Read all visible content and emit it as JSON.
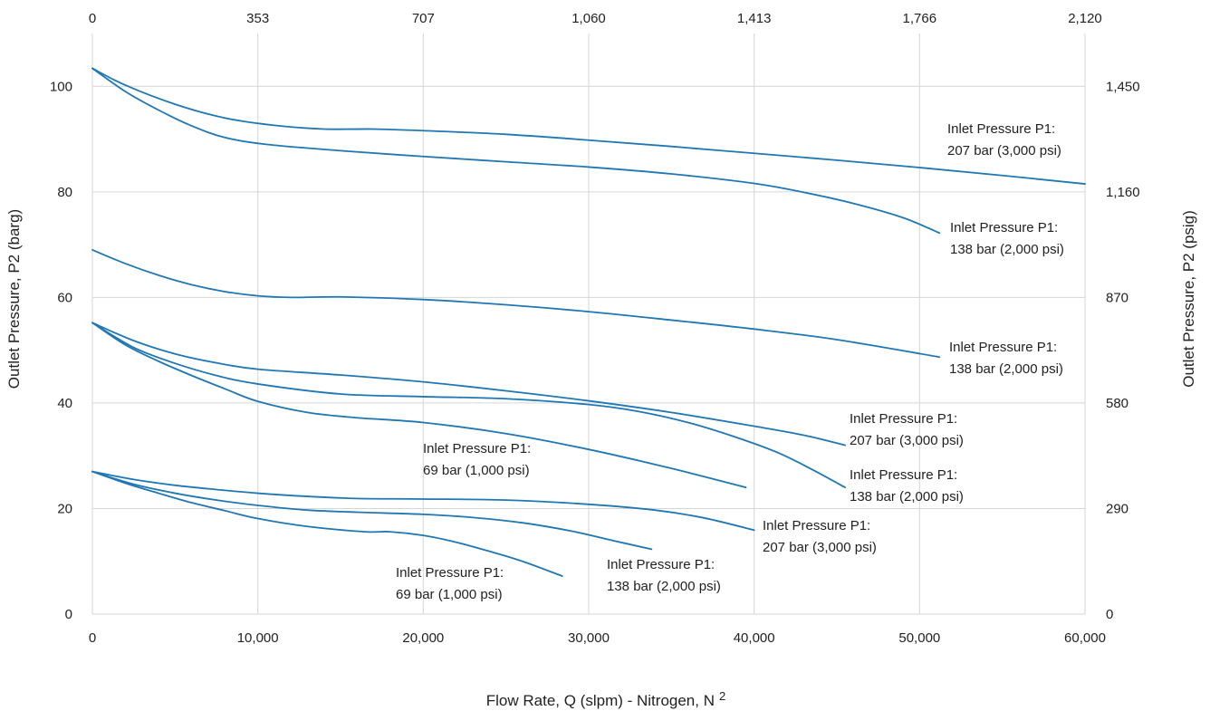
{
  "chart_data": {
    "type": "line",
    "xlabel": "Flow Rate, Q (slpm) - Nitrogen, N",
    "xlabel_subscript": "2",
    "ylabel": "Outlet Pressure, P2 (barg)",
    "ylabel_right": "Outlet Pressure, P2 (psig)",
    "xlim": [
      0,
      60000
    ],
    "ylim": [
      0,
      110
    ],
    "x_ticks": [
      0,
      10000,
      20000,
      30000,
      40000,
      50000,
      60000
    ],
    "x_tick_labels": [
      "0",
      "10,000",
      "20,000",
      "30,000",
      "40,000",
      "50,000",
      "60,000"
    ],
    "top_ticks": [
      0,
      353,
      707,
      1060,
      1413,
      1766,
      2120
    ],
    "top_tick_labels": [
      "0",
      "353",
      "707",
      "1,060",
      "1,413",
      "1,766",
      "2,120"
    ],
    "y_ticks": [
      0,
      20,
      40,
      60,
      80,
      100
    ],
    "y_tick_labels": [
      "0",
      "20",
      "40",
      "60",
      "80",
      "100"
    ],
    "right_tick_labels": [
      "0",
      "290",
      "580",
      "870",
      "1,160",
      "1,450"
    ],
    "grid": true,
    "color": "#1f77b4",
    "series": [
      {
        "annotation_lines": [
          "Inlet Pressure P1:",
          "207 bar (3,000 psi)"
        ],
        "x": [
          0,
          2000,
          5000,
          8000,
          11000,
          14000,
          17000,
          20000,
          25000,
          30000,
          35000,
          40000,
          45000,
          50000,
          55000,
          60000
        ],
        "y": [
          103.4,
          100.2,
          96.6,
          94.0,
          92.6,
          91.9,
          91.9,
          91.6,
          90.9,
          89.8,
          88.6,
          87.3,
          86.0,
          84.6,
          83.1,
          81.5
        ]
      },
      {
        "annotation_lines": [
          "Inlet Pressure P1:",
          "138 bar (2,000 psi)"
        ],
        "x": [
          0,
          2000,
          4000,
          6000,
          8000,
          10500,
          15000,
          20000,
          25000,
          30000,
          35000,
          40000,
          43000,
          46000,
          49000,
          51200
        ],
        "y": [
          103.4,
          99.0,
          95.5,
          92.5,
          90.3,
          89.0,
          87.8,
          86.7,
          85.7,
          84.7,
          83.4,
          81.6,
          79.9,
          77.8,
          75.1,
          72.2
        ]
      },
      {
        "annotation_lines": [
          "Inlet Pressure P1:",
          "138 bar (2,000 psi)"
        ],
        "x": [
          0,
          2000,
          4000,
          6000,
          8000,
          10000,
          12000,
          15000,
          20000,
          25000,
          30000,
          35000,
          40000,
          45000,
          51200
        ],
        "y": [
          69.0,
          66.4,
          64.2,
          62.4,
          61.1,
          60.3,
          60.0,
          60.1,
          59.6,
          58.6,
          57.3,
          55.7,
          54.0,
          52.0,
          48.7
        ]
      },
      {
        "annotation_lines": [
          "Inlet Pressure P1:",
          "207 bar (3,000 psi)"
        ],
        "x": [
          0,
          2500,
          5000,
          7500,
          10000,
          15000,
          20000,
          25000,
          30000,
          35000,
          40000,
          43000,
          45500
        ],
        "y": [
          55.2,
          51.8,
          49.3,
          47.6,
          46.4,
          45.3,
          44.0,
          42.3,
          40.4,
          38.2,
          35.6,
          33.9,
          32.0
        ]
      },
      {
        "annotation_lines": [
          "Inlet Pressure P1:",
          "138 bar (2,000 psi)"
        ],
        "x": [
          0,
          2500,
          5000,
          7500,
          10000,
          15000,
          20000,
          25000,
          30000,
          33000,
          36000,
          39000,
          41500,
          43500,
          45500
        ],
        "y": [
          55.2,
          50.5,
          47.5,
          45.2,
          43.6,
          41.7,
          41.2,
          40.8,
          39.7,
          38.4,
          36.3,
          33.4,
          30.5,
          27.4,
          24.0
        ]
      },
      {
        "annotation_lines": [
          "Inlet Pressure P1:",
          "69 bar (1,000 psi)"
        ],
        "x": [
          0,
          2000,
          4000,
          6000,
          8000,
          10000,
          13000,
          16000,
          20000,
          25000,
          30000,
          35000,
          39500
        ],
        "y": [
          55.2,
          51.0,
          47.9,
          45.2,
          42.7,
          40.3,
          38.2,
          37.2,
          36.3,
          34.2,
          31.2,
          27.6,
          24.0
        ]
      },
      {
        "annotation_lines": [
          "Inlet Pressure P1:",
          "207 bar (3,000 psi)"
        ],
        "x": [
          0,
          2500,
          5000,
          7500,
          10000,
          13000,
          16000,
          20000,
          25000,
          30000,
          34000,
          37000,
          40000
        ],
        "y": [
          27.0,
          25.5,
          24.4,
          23.6,
          22.9,
          22.3,
          21.9,
          21.8,
          21.6,
          20.8,
          19.7,
          18.2,
          15.9
        ]
      },
      {
        "annotation_lines": [
          "Inlet Pressure P1:",
          "138 bar (2,000 psi)"
        ],
        "x": [
          0,
          2500,
          5000,
          7500,
          10000,
          13000,
          16000,
          20000,
          23000,
          26000,
          29000,
          31500,
          33800
        ],
        "y": [
          27.0,
          24.6,
          22.9,
          21.6,
          20.6,
          19.7,
          19.3,
          18.9,
          18.3,
          17.3,
          15.7,
          13.9,
          12.3
        ]
      },
      {
        "annotation_lines": [
          "Inlet Pressure P1:",
          "69 bar (1,000 psi)"
        ],
        "x": [
          0,
          2000,
          4000,
          6000,
          8000,
          10000,
          13000,
          16500,
          18000,
          20000,
          22000,
          24000,
          26000,
          28400
        ],
        "y": [
          27.0,
          24.8,
          22.9,
          21.1,
          19.6,
          18.1,
          16.6,
          15.6,
          15.6,
          14.9,
          13.6,
          11.9,
          10.0,
          7.2
        ]
      }
    ]
  }
}
